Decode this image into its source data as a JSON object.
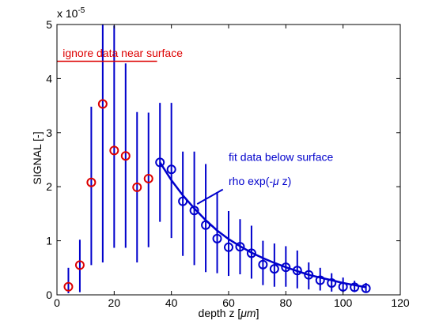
{
  "chart_data": {
    "type": "scatter",
    "xlabel_prefix": "depth z [",
    "xlabel_unit": "μm",
    "xlabel_suffix": "]",
    "ylabel": "SIGNAL [-]",
    "xlim": [
      0,
      120
    ],
    "ylim": [
      0,
      5
    ],
    "y_scale_label": "x 10",
    "y_scale_exponent": "-5",
    "x_ticks": [
      0,
      20,
      40,
      60,
      80,
      100,
      120
    ],
    "y_ticks": [
      0,
      1,
      2,
      3,
      4,
      5
    ],
    "grid": false,
    "colors": {
      "near_surface": "#dd0000",
      "below_surface": "#0000cc",
      "axes": "#000000"
    },
    "near_surface_points": {
      "x": [
        4,
        8,
        12,
        16,
        20,
        24,
        28,
        32
      ],
      "y": [
        0.15,
        0.55,
        2.08,
        3.53,
        2.67,
        2.57,
        1.99,
        2.15
      ]
    },
    "below_surface_points": {
      "x": [
        36,
        40,
        44,
        48,
        52,
        56,
        60,
        64,
        68,
        72,
        76,
        80,
        84,
        88,
        92,
        96,
        100,
        104,
        108
      ],
      "y": [
        2.45,
        2.32,
        1.73,
        1.56,
        1.29,
        1.04,
        0.88,
        0.89,
        0.77,
        0.56,
        0.48,
        0.51,
        0.45,
        0.37,
        0.27,
        0.22,
        0.15,
        0.14,
        0.12
      ]
    },
    "error_bars": {
      "x": [
        4,
        8,
        12,
        16,
        20,
        24,
        28,
        32,
        36,
        40,
        44,
        48,
        52,
        56,
        60,
        64,
        68,
        72,
        76,
        80,
        84,
        88,
        92,
        96,
        100,
        104,
        108
      ],
      "low": [
        0.03,
        0.05,
        0.55,
        0.6,
        0.87,
        0.87,
        0.6,
        0.88,
        1.35,
        1.05,
        0.72,
        0.55,
        0.42,
        0.4,
        0.35,
        0.38,
        0.3,
        0.18,
        0.15,
        0.15,
        0.12,
        0.1,
        0.08,
        0.06,
        0.05,
        0.05,
        0.05
      ],
      "high": [
        0.5,
        1.02,
        3.48,
        5.0,
        4.98,
        4.28,
        3.38,
        3.37,
        3.55,
        3.55,
        2.65,
        2.65,
        2.42,
        1.9,
        1.55,
        1.4,
        1.28,
        1.0,
        0.95,
        0.9,
        0.82,
        0.6,
        0.5,
        0.4,
        0.32,
        0.26,
        0.22
      ]
    },
    "fit_curve": {
      "x": [
        36,
        40,
        44,
        48,
        52,
        56,
        60,
        64,
        68,
        72,
        76,
        80,
        84,
        88,
        92,
        96,
        100,
        104,
        108
      ],
      "y": [
        2.45,
        2.12,
        1.84,
        1.6,
        1.38,
        1.19,
        1.03,
        0.9,
        0.78,
        0.68,
        0.59,
        0.51,
        0.44,
        0.37,
        0.32,
        0.27,
        0.22,
        0.18,
        0.14
      ]
    },
    "annotations": {
      "ignore_label": "ignore data near surface",
      "ignore_line_y": 4.32,
      "ignore_line_x": [
        0,
        35
      ],
      "ignore_label_x": 2,
      "ignore_label_y": 4.4,
      "fit_label_line1": "fit data below surface",
      "fit_label_line2_pre": "rho exp(-",
      "fit_label_line2_mu": "μ",
      "fit_label_line2_post": " z)",
      "fit_label_x": 60,
      "fit_label_y1": 2.48,
      "fit_label_y2": 2.03,
      "pointer_from": [
        58,
        1.95
      ],
      "pointer_to": [
        49,
        1.68
      ]
    }
  }
}
